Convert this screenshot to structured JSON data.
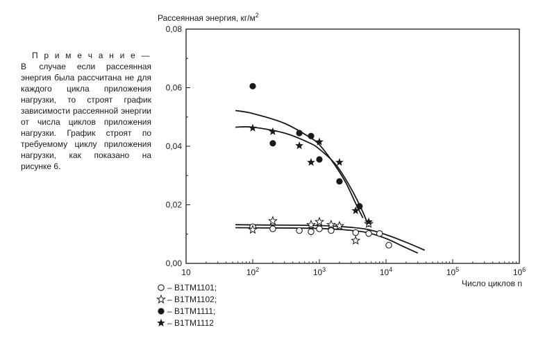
{
  "note": {
    "heading": "П р и м е ч а н и е — В",
    "body": "случае если рассеянная энергия была рассчитана не для каждого цикла приложения нагрузки, то строят график зависимости рассеянной энергии от числа циклов приложения нагрузки. График строят по требуемому циклу приложения нагрузки, как показано на рисунке 6."
  },
  "chart_data": {
    "type": "scatter",
    "ylabel": "Рассеянная энергия, кг/м",
    "ylabel_sup": "2",
    "xlabel": "Число циклов n",
    "xscale": "log",
    "xlim": [
      10,
      1000000
    ],
    "ylim": [
      0,
      0.08
    ],
    "y_ticks": [
      "0,00",
      "0,02",
      "0,04",
      "0,06",
      "0,08"
    ],
    "x_ticks": [
      {
        "base": "10",
        "exp": ""
      },
      {
        "base": "10",
        "exp": "2"
      },
      {
        "base": "10",
        "exp": "3"
      },
      {
        "base": "10",
        "exp": "4"
      },
      {
        "base": "10",
        "exp": "5"
      },
      {
        "base": "10",
        "exp": "6"
      }
    ],
    "grid": false,
    "legend_position": "bottom-left",
    "series": [
      {
        "name": "B1TM1101;",
        "marker": "circle-open",
        "points": [
          [
            100,
            0.0125
          ],
          [
            200,
            0.0118
          ],
          [
            500,
            0.0112
          ],
          [
            750,
            0.0108
          ],
          [
            1000,
            0.0118
          ],
          [
            1500,
            0.0112
          ],
          [
            3500,
            0.0105
          ],
          [
            5500,
            0.0102
          ],
          [
            8000,
            0.0102
          ],
          [
            11000,
            0.0062
          ]
        ]
      },
      {
        "name": "B1TM1102;",
        "marker": "star-open",
        "points": [
          [
            100,
            0.0115
          ],
          [
            200,
            0.0145
          ],
          [
            750,
            0.0132
          ],
          [
            1000,
            0.0142
          ],
          [
            1500,
            0.0132
          ],
          [
            2000,
            0.0128
          ],
          [
            3500,
            0.0078
          ],
          [
            5500,
            0.0135
          ]
        ]
      },
      {
        "name": "B1TM1111;",
        "marker": "circle-filled",
        "points": [
          [
            100,
            0.0605
          ],
          [
            200,
            0.041
          ],
          [
            500,
            0.0445
          ],
          [
            750,
            0.0435
          ],
          [
            1000,
            0.0355
          ],
          [
            2000,
            0.028
          ],
          [
            4000,
            0.0195
          ]
        ]
      },
      {
        "name": "B1TM1112",
        "marker": "star-filled",
        "points": [
          [
            100,
            0.0462
          ],
          [
            200,
            0.045
          ],
          [
            500,
            0.0402
          ],
          [
            750,
            0.0345
          ],
          [
            1000,
            0.0415
          ],
          [
            2000,
            0.0345
          ],
          [
            3500,
            0.018
          ],
          [
            5500,
            0.0142
          ]
        ]
      }
    ],
    "fit_curves": [
      {
        "points": [
          [
            55,
            0.0522
          ],
          [
            100,
            0.0512
          ],
          [
            300,
            0.0478
          ],
          [
            700,
            0.0432
          ],
          [
            1000,
            0.0405
          ],
          [
            1600,
            0.0345
          ],
          [
            2500,
            0.0275
          ],
          [
            3500,
            0.0205
          ],
          [
            4500,
            0.0155
          ]
        ]
      },
      {
        "points": [
          [
            55,
            0.0465
          ],
          [
            100,
            0.0465
          ],
          [
            300,
            0.0445
          ],
          [
            700,
            0.0412
          ],
          [
            1000,
            0.039
          ],
          [
            1800,
            0.0335
          ],
          [
            3000,
            0.0255
          ],
          [
            4500,
            0.0175
          ],
          [
            5500,
            0.0125
          ]
        ]
      },
      {
        "points": [
          [
            55,
            0.0132
          ],
          [
            150,
            0.0131
          ],
          [
            700,
            0.013
          ],
          [
            2000,
            0.0126
          ],
          [
            5000,
            0.0117
          ],
          [
            10000,
            0.0098
          ],
          [
            20000,
            0.0072
          ],
          [
            38000,
            0.0045
          ]
        ]
      },
      {
        "points": [
          [
            55,
            0.0122
          ],
          [
            150,
            0.0121
          ],
          [
            700,
            0.012
          ],
          [
            2000,
            0.0116
          ],
          [
            5000,
            0.0106
          ],
          [
            10000,
            0.0085
          ],
          [
            18000,
            0.0058
          ],
          [
            30000,
            0.0035
          ]
        ]
      }
    ]
  }
}
